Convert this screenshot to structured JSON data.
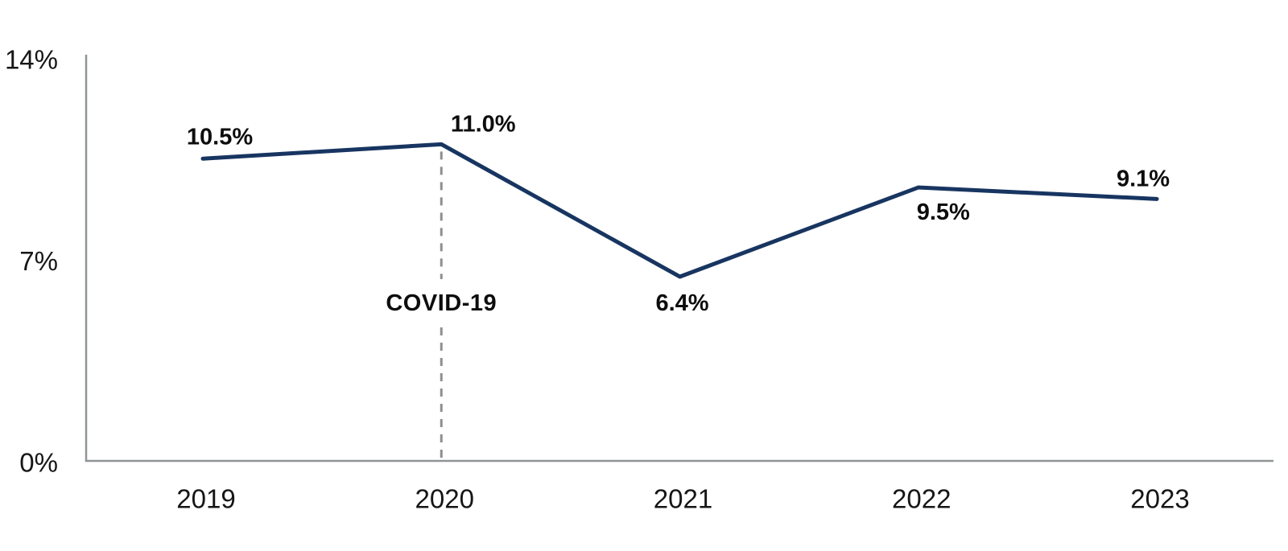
{
  "chart_data": {
    "type": "line",
    "categories": [
      "2019",
      "2020",
      "2021",
      "2022",
      "2023"
    ],
    "values": [
      10.5,
      11.0,
      6.4,
      9.5,
      9.1
    ],
    "value_labels": [
      "10.5%",
      "11.0%",
      "6.4%",
      "9.5%",
      "9.1%"
    ],
    "title": "",
    "xlabel": "",
    "ylabel": "",
    "ylim": [
      0,
      14
    ],
    "yticks": [
      0,
      7,
      14
    ],
    "ytick_labels": [
      "0%",
      "7%",
      "14%"
    ],
    "grid": false,
    "legend": "none",
    "annotation": {
      "label": "COVID-19",
      "at_category": "2020"
    },
    "colors": {
      "line": "#183561",
      "axis": "#8f9496",
      "annotation_line": "#8f8f8f",
      "text": "#161616",
      "background": "#ffffff"
    }
  }
}
